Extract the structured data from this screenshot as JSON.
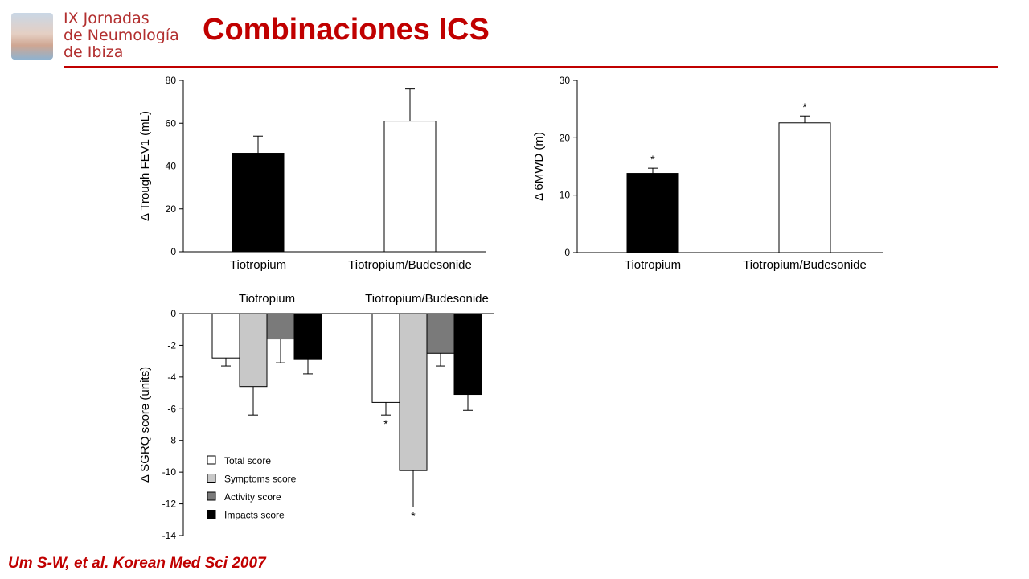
{
  "header": {
    "logo_lines": [
      "IX Jornadas",
      "de Neumología",
      "de Ibiza"
    ],
    "title": "Combinaciones ICS"
  },
  "citation": "Um S-W, et al. Korean Med Sci 2007",
  "chart_data": [
    {
      "type": "bar",
      "ylabel": "Δ Trough FEV1 (mL)",
      "categories": [
        "Tiotropium",
        "Tiotropium/Budesonide"
      ],
      "values": [
        46,
        61
      ],
      "errors": [
        8,
        15
      ],
      "colors": [
        "#000000",
        "#ffffff"
      ],
      "ylim": [
        0,
        80
      ],
      "yticks": [
        0,
        20,
        40,
        60,
        80
      ]
    },
    {
      "type": "bar",
      "ylabel": "Δ 6MWD (m)",
      "categories": [
        "Tiotropium",
        "Tiotropium/Budesonide"
      ],
      "values": [
        13.8,
        22.6
      ],
      "errors": [
        0.9,
        1.2
      ],
      "markers": [
        "*",
        "*"
      ],
      "colors": [
        "#000000",
        "#ffffff"
      ],
      "ylim": [
        0,
        30
      ],
      "yticks": [
        0,
        10,
        20,
        30
      ]
    },
    {
      "type": "bar",
      "ylabel": "Δ SGRQ score (units)",
      "categories": [
        "Tiotropium",
        "Tiotropium/Budesonide"
      ],
      "ylim": [
        -14,
        0
      ],
      "yticks": [
        0,
        -2,
        -4,
        -6,
        -8,
        -10,
        -12,
        -14
      ],
      "legend_position": "bottom-left",
      "series": [
        {
          "name": "Total score",
          "color": "#ffffff",
          "values": [
            -2.8,
            -5.6
          ],
          "errors": [
            0.5,
            0.8
          ],
          "markers": [
            "",
            "*"
          ]
        },
        {
          "name": "Symptoms score",
          "color": "#c8c8c8",
          "values": [
            -4.6,
            -9.9
          ],
          "errors": [
            1.8,
            2.3
          ],
          "markers": [
            "",
            "*"
          ]
        },
        {
          "name": "Activity score",
          "color": "#7a7a7a",
          "values": [
            -1.6,
            -2.5
          ],
          "errors": [
            1.5,
            0.8
          ],
          "markers": [
            "",
            ""
          ]
        },
        {
          "name": "Impacts score",
          "color": "#000000",
          "values": [
            -2.9,
            -5.1
          ],
          "errors": [
            0.9,
            1.0
          ],
          "markers": [
            "",
            ""
          ]
        }
      ]
    }
  ]
}
